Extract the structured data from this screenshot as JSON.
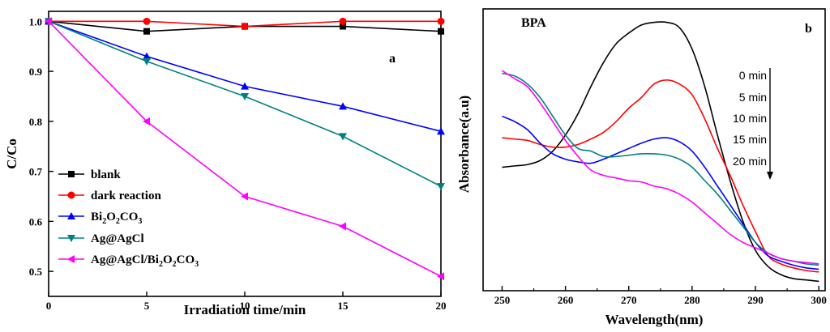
{
  "chart_data": [
    {
      "type": "line",
      "panel_letter": "a",
      "xlabel": "Irradiation time/min",
      "ylabel": "C/Co",
      "xlim": [
        0,
        20
      ],
      "ylim": [
        0.45,
        1.02
      ],
      "xticks": [
        "0",
        "5",
        "10",
        "15",
        "20"
      ],
      "yticks": [
        "0.5",
        "0.6",
        "0.7",
        "0.8",
        "0.9",
        "1.0"
      ],
      "legend_position": "bottom-left",
      "x": [
        0,
        5,
        10,
        15,
        20
      ],
      "series": [
        {
          "name": "blank",
          "marker": "square",
          "color": "#000000",
          "values": [
            1.0,
            0.98,
            0.99,
            0.99,
            0.98
          ]
        },
        {
          "name": "dark reaction",
          "marker": "circle",
          "color": "#ff0000",
          "values": [
            1.0,
            1.0,
            0.99,
            1.0,
            1.0
          ]
        },
        {
          "name": "Bi2O2CO3",
          "marker": "triangle-up",
          "color": "#0000ff",
          "values": [
            1.0,
            0.93,
            0.87,
            0.83,
            0.78
          ]
        },
        {
          "name": "Ag@AgCl",
          "marker": "triangle-down",
          "color": "#008080",
          "values": [
            1.0,
            0.92,
            0.85,
            0.77,
            0.67
          ]
        },
        {
          "name": "Ag@AgCl/Bi2O2CO3",
          "marker": "triangle-left",
          "color": "#ff00ff",
          "values": [
            1.0,
            0.8,
            0.65,
            0.59,
            0.49
          ]
        }
      ]
    },
    {
      "type": "line",
      "panel_letter": "b",
      "title": "BPA",
      "xlabel": "Wavelength(nm)",
      "ylabel": "Absorbance(a.u)",
      "xlim": [
        247,
        301
      ],
      "ylim": [
        0,
        1.05
      ],
      "xticks": [
        "250",
        "260",
        "270",
        "280",
        "290",
        "300"
      ],
      "legend_position": "top-right",
      "time_labels": [
        "0 min",
        "5 min",
        "10 min",
        "15 min",
        "20 min"
      ],
      "x": [
        250,
        252,
        254,
        256,
        258,
        260,
        262,
        264,
        266,
        268,
        270,
        272,
        274,
        276,
        278,
        280,
        282,
        284,
        286,
        288,
        290,
        292,
        294,
        296,
        298,
        300
      ],
      "series": [
        {
          "name": "0 min",
          "color": "#000000",
          "values": [
            0.46,
            0.465,
            0.47,
            0.485,
            0.52,
            0.58,
            0.66,
            0.76,
            0.85,
            0.92,
            0.96,
            0.99,
            1.0,
            1.0,
            0.98,
            0.9,
            0.76,
            0.58,
            0.41,
            0.26,
            0.15,
            0.09,
            0.06,
            0.045,
            0.04,
            0.035
          ]
        },
        {
          "name": "5 min",
          "color": "#ff0000",
          "values": [
            0.57,
            0.565,
            0.56,
            0.545,
            0.535,
            0.535,
            0.545,
            0.565,
            0.59,
            0.63,
            0.68,
            0.72,
            0.77,
            0.785,
            0.77,
            0.73,
            0.64,
            0.53,
            0.43,
            0.32,
            0.22,
            0.13,
            0.1,
            0.085,
            0.075,
            0.07
          ]
        },
        {
          "name": "10 min",
          "color": "#0000ff",
          "values": [
            0.65,
            0.63,
            0.6,
            0.55,
            0.51,
            0.49,
            0.48,
            0.475,
            0.49,
            0.51,
            0.53,
            0.55,
            0.565,
            0.57,
            0.555,
            0.52,
            0.46,
            0.39,
            0.32,
            0.25,
            0.18,
            0.13,
            0.11,
            0.095,
            0.085,
            0.08
          ]
        },
        {
          "name": "15 min",
          "color": "#008080",
          "values": [
            0.81,
            0.8,
            0.77,
            0.72,
            0.65,
            0.58,
            0.53,
            0.52,
            0.5,
            0.5,
            0.505,
            0.51,
            0.51,
            0.505,
            0.49,
            0.46,
            0.41,
            0.36,
            0.3,
            0.24,
            0.18,
            0.14,
            0.12,
            0.11,
            0.1,
            0.095
          ]
        },
        {
          "name": "20 min",
          "color": "#ff00ff",
          "values": [
            0.82,
            0.79,
            0.76,
            0.7,
            0.63,
            0.56,
            0.5,
            0.45,
            0.43,
            0.42,
            0.41,
            0.405,
            0.39,
            0.38,
            0.36,
            0.33,
            0.29,
            0.25,
            0.21,
            0.18,
            0.16,
            0.14,
            0.12,
            0.11,
            0.105,
            0.1
          ]
        }
      ]
    }
  ]
}
